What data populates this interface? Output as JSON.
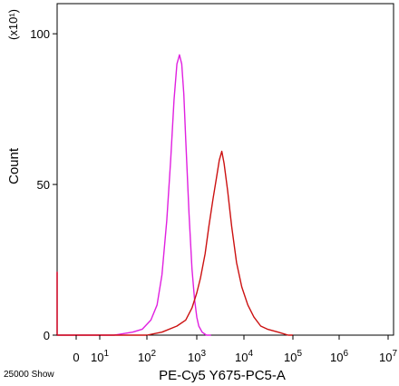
{
  "chart_data": {
    "type": "line",
    "title": "",
    "xlabel": "PE-Cy5 Y675-PC5-A",
    "ylabel": "Count",
    "y_scale_label": "(x10¹)",
    "x_scale": "log",
    "xlim": [
      0,
      10000000
    ],
    "ylim": [
      0,
      110
    ],
    "grid": false,
    "legend": "none",
    "x_tick_labels": [
      {
        "base": "0",
        "exp": ""
      },
      {
        "base": "10",
        "exp": "1"
      },
      {
        "base": "10",
        "exp": "2"
      },
      {
        "base": "10",
        "exp": "3"
      },
      {
        "base": "10",
        "exp": "4"
      },
      {
        "base": "10",
        "exp": "5"
      },
      {
        "base": "10",
        "exp": "6"
      },
      {
        "base": "10",
        "exp": "7"
      }
    ],
    "y_ticks": [
      0,
      50,
      100
    ],
    "y_tick_labels": [
      "0",
      "50",
      "100"
    ],
    "footnote": "25000 Show",
    "series": [
      {
        "color": "#e020e0",
        "x": [
          0,
          0,
          1,
          20,
          50,
          80,
          120,
          160,
          200,
          250,
          300,
          350,
          400,
          450,
          500,
          550,
          600,
          700,
          800,
          900,
          1000,
          1100,
          1300,
          1600,
          2000
        ],
        "y": [
          21,
          0,
          0,
          0,
          1,
          2,
          5,
          10,
          20,
          38,
          58,
          78,
          90,
          93,
          90,
          80,
          65,
          40,
          22,
          12,
          6,
          3,
          1,
          0,
          0
        ]
      },
      {
        "color": "#cc1111",
        "x": [
          0,
          0,
          1,
          100,
          200,
          400,
          600,
          800,
          1000,
          1200,
          1500,
          1800,
          2200,
          2600,
          3000,
          3400,
          3800,
          4500,
          5500,
          7000,
          9000,
          12000,
          16000,
          22000,
          30000,
          50000,
          80000,
          100000
        ],
        "y": [
          21,
          0,
          0,
          0,
          1,
          3,
          5,
          9,
          14,
          19,
          27,
          36,
          45,
          52,
          58,
          61,
          57,
          48,
          36,
          24,
          16,
          10,
          6,
          3,
          2,
          1,
          0,
          0
        ]
      }
    ]
  }
}
